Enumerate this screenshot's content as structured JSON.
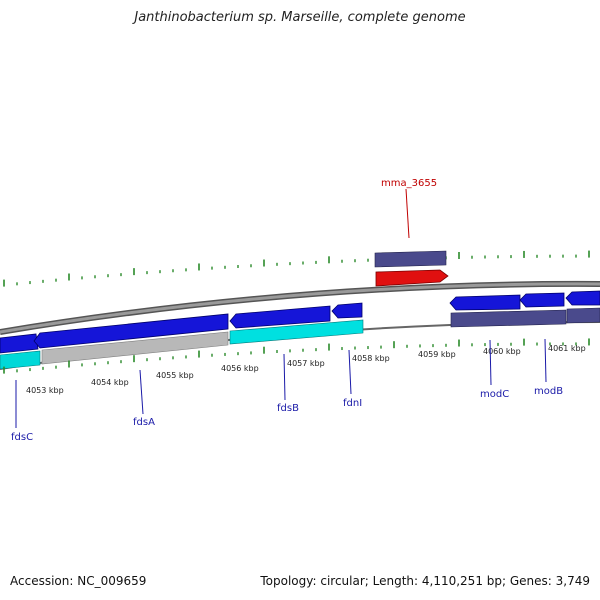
{
  "title": "Janthinobacterium sp. Marseille, complete genome",
  "footer": {
    "accession": "Accession: NC_009659",
    "summary": "Topology: circular; Length: 4,110,251 bp; Genes: 3,749"
  },
  "colors": {
    "backbone": "#8a8a8a",
    "cds": "#1515d8",
    "cds_light": "#5a5aff",
    "rna": "#e01010",
    "cog_cyan": "#00d8d8",
    "cog_gray": "#b8b8b8",
    "cog_purple": "#4a4a8c",
    "tick": "#2a8a2a",
    "label_blue": "#1a1aa8",
    "label_red": "#c00000"
  },
  "ticks": [
    "4053 kbp",
    "4054 kbp",
    "4055 kbp",
    "4056 kbp",
    "4057 kbp",
    "4058 kbp",
    "4059 kbp",
    "4060 kbp",
    "4061 kbp"
  ],
  "genes": [
    {
      "id": "fdsC",
      "label": "fdsC",
      "color": "blue"
    },
    {
      "id": "fdsA",
      "label": "fdsA",
      "color": "blue"
    },
    {
      "id": "fdsB",
      "label": "fdsB",
      "color": "blue"
    },
    {
      "id": "fdnI",
      "label": "fdnI",
      "color": "blue"
    },
    {
      "id": "modC",
      "label": "modC",
      "color": "blue"
    },
    {
      "id": "modB",
      "label": "modB",
      "color": "blue"
    },
    {
      "id": "mma_3655",
      "label": "mma_3655",
      "color": "red"
    }
  ]
}
